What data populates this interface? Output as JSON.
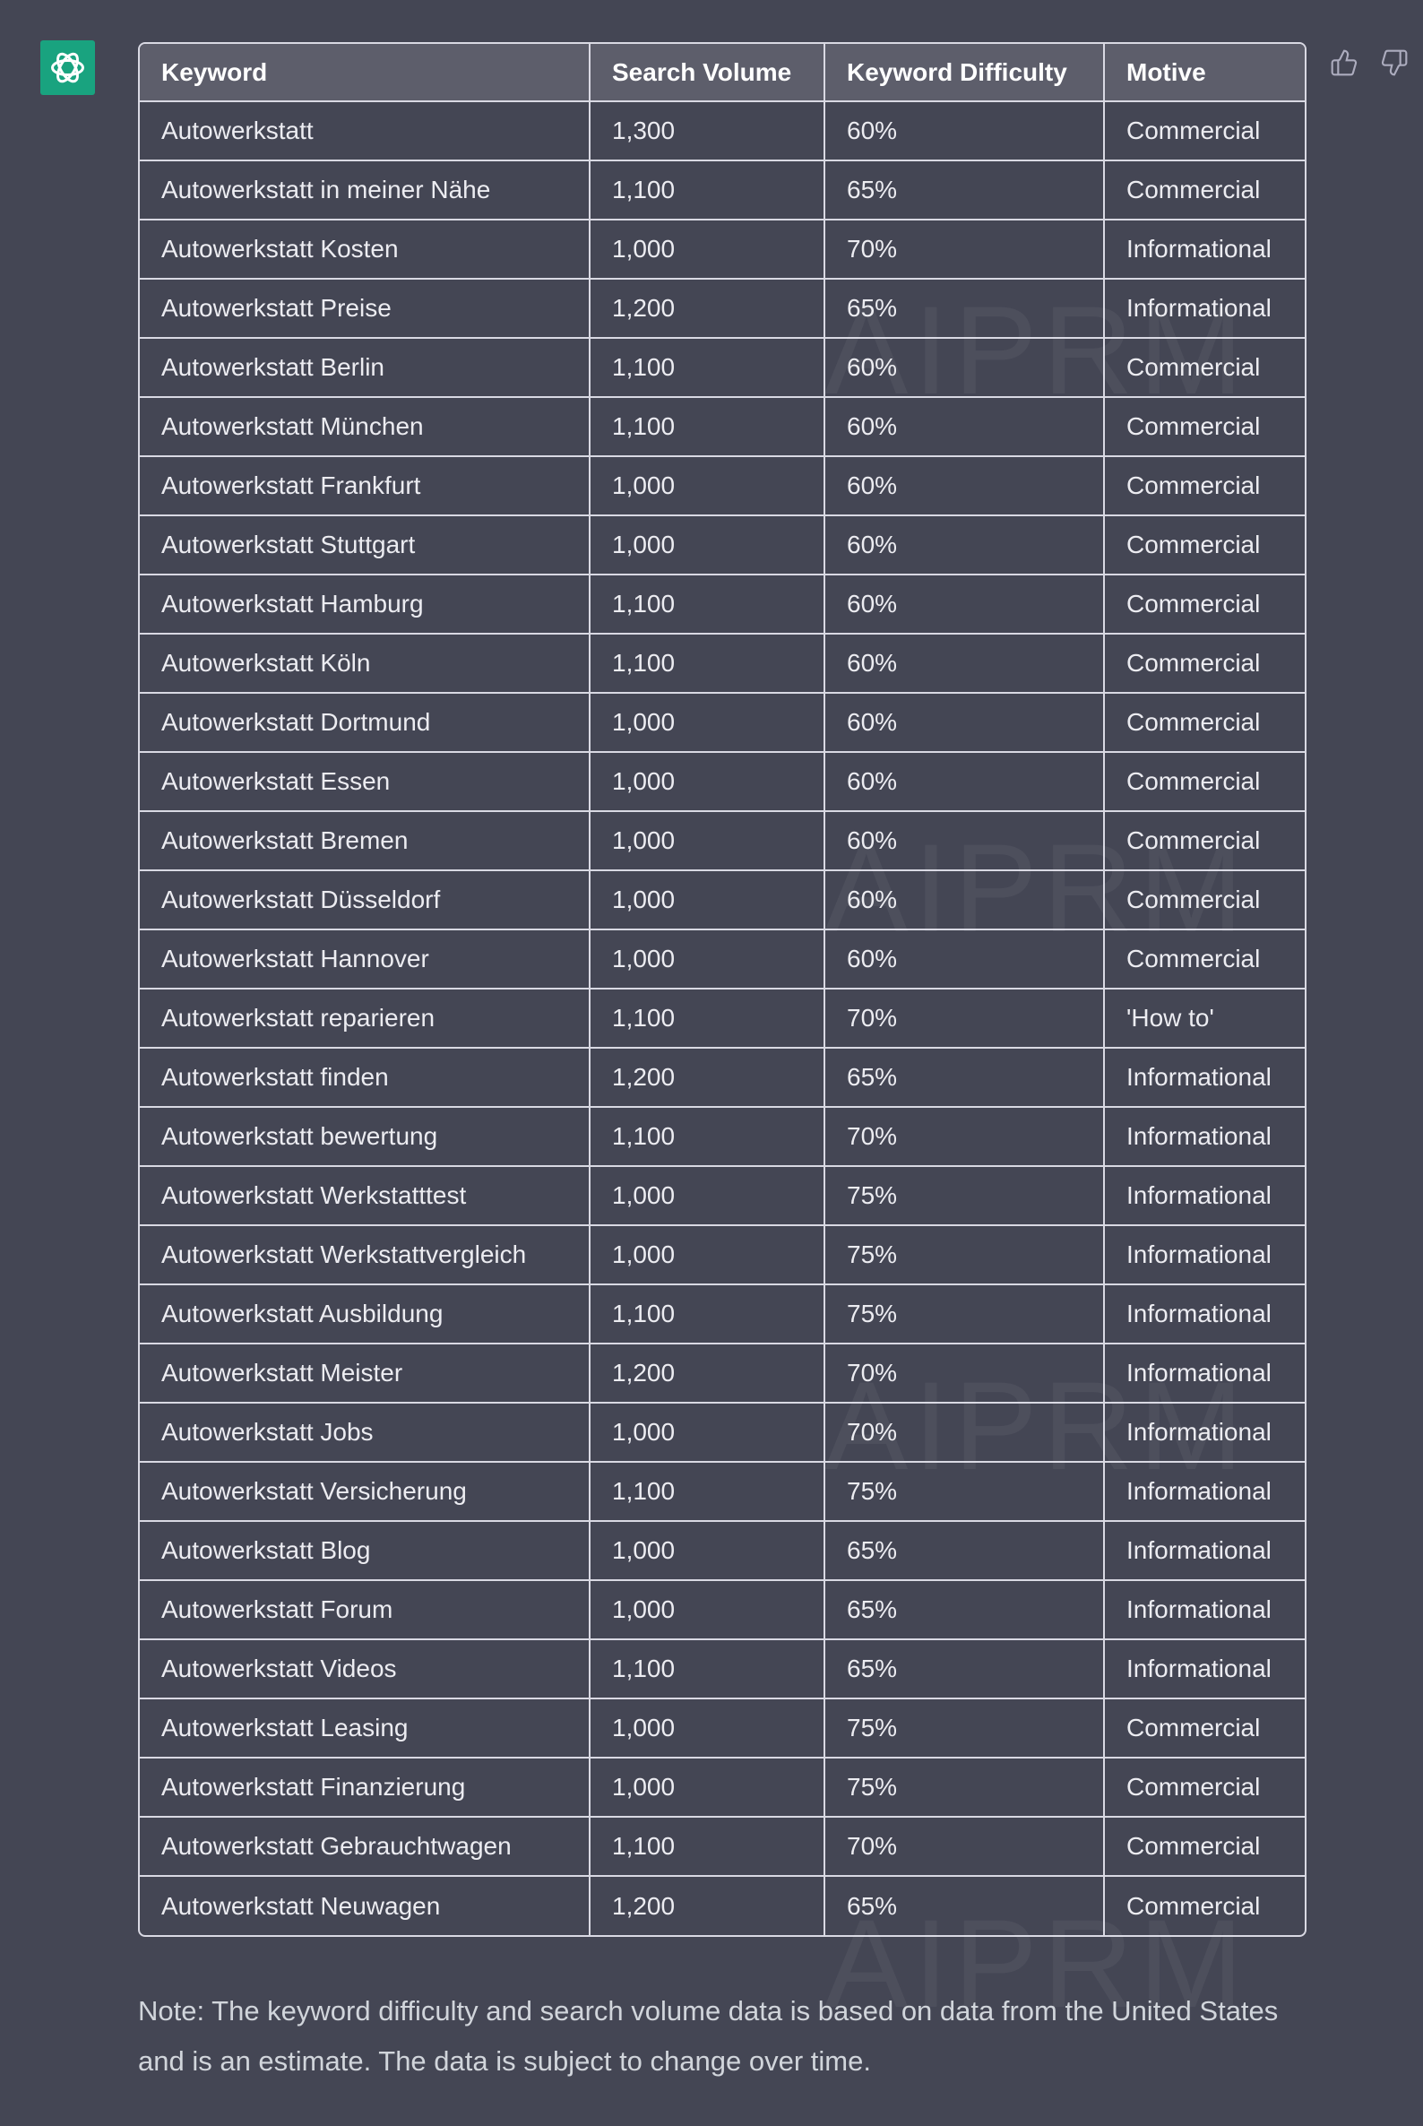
{
  "table": {
    "header": [
      "Keyword",
      "Search Volume",
      "Keyword Difficulty",
      "Motive"
    ],
    "rows": [
      [
        "Autowerkstatt",
        "1,300",
        "60%",
        "Commercial"
      ],
      [
        "Autowerkstatt in meiner Nähe",
        "1,100",
        "65%",
        "Commercial"
      ],
      [
        "Autowerkstatt Kosten",
        "1,000",
        "70%",
        "Informational"
      ],
      [
        "Autowerkstatt Preise",
        "1,200",
        "65%",
        "Informational"
      ],
      [
        "Autowerkstatt Berlin",
        "1,100",
        "60%",
        "Commercial"
      ],
      [
        "Autowerkstatt München",
        "1,100",
        "60%",
        "Commercial"
      ],
      [
        "Autowerkstatt Frankfurt",
        "1,000",
        "60%",
        "Commercial"
      ],
      [
        "Autowerkstatt Stuttgart",
        "1,000",
        "60%",
        "Commercial"
      ],
      [
        "Autowerkstatt Hamburg",
        "1,100",
        "60%",
        "Commercial"
      ],
      [
        "Autowerkstatt Köln",
        "1,100",
        "60%",
        "Commercial"
      ],
      [
        "Autowerkstatt Dortmund",
        "1,000",
        "60%",
        "Commercial"
      ],
      [
        "Autowerkstatt Essen",
        "1,000",
        "60%",
        "Commercial"
      ],
      [
        "Autowerkstatt Bremen",
        "1,000",
        "60%",
        "Commercial"
      ],
      [
        "Autowerkstatt Düsseldorf",
        "1,000",
        "60%",
        "Commercial"
      ],
      [
        "Autowerkstatt Hannover",
        "1,000",
        "60%",
        "Commercial"
      ],
      [
        "Autowerkstatt reparieren",
        "1,100",
        "70%",
        "'How to'"
      ],
      [
        "Autowerkstatt finden",
        "1,200",
        "65%",
        "Informational"
      ],
      [
        "Autowerkstatt bewertung",
        "1,100",
        "70%",
        "Informational"
      ],
      [
        "Autowerkstatt Werkstatttest",
        "1,000",
        "75%",
        "Informational"
      ],
      [
        "Autowerkstatt Werkstattvergleich",
        "1,000",
        "75%",
        "Informational"
      ],
      [
        "Autowerkstatt Ausbildung",
        "1,100",
        "75%",
        "Informational"
      ],
      [
        "Autowerkstatt Meister",
        "1,200",
        "70%",
        "Informational"
      ],
      [
        "Autowerkstatt Jobs",
        "1,000",
        "70%",
        "Informational"
      ],
      [
        "Autowerkstatt Versicherung",
        "1,100",
        "75%",
        "Informational"
      ],
      [
        "Autowerkstatt Blog",
        "1,000",
        "65%",
        "Informational"
      ],
      [
        "Autowerkstatt Forum",
        "1,000",
        "65%",
        "Informational"
      ],
      [
        "Autowerkstatt Videos",
        "1,100",
        "65%",
        "Informational"
      ],
      [
        "Autowerkstatt Leasing",
        "1,000",
        "75%",
        "Commercial"
      ],
      [
        "Autowerkstatt Finanzierung",
        "1,000",
        "75%",
        "Commercial"
      ],
      [
        "Autowerkstatt Gebrauchtwagen",
        "1,100",
        "70%",
        "Commercial"
      ],
      [
        "Autowerkstatt Neuwagen",
        "1,200",
        "65%",
        "Commercial"
      ]
    ]
  },
  "watermark": "AIPRM",
  "note": "Note: The keyword difficulty and search volume data is based on data from the United States and is an estimate. The data is subject to change over time."
}
